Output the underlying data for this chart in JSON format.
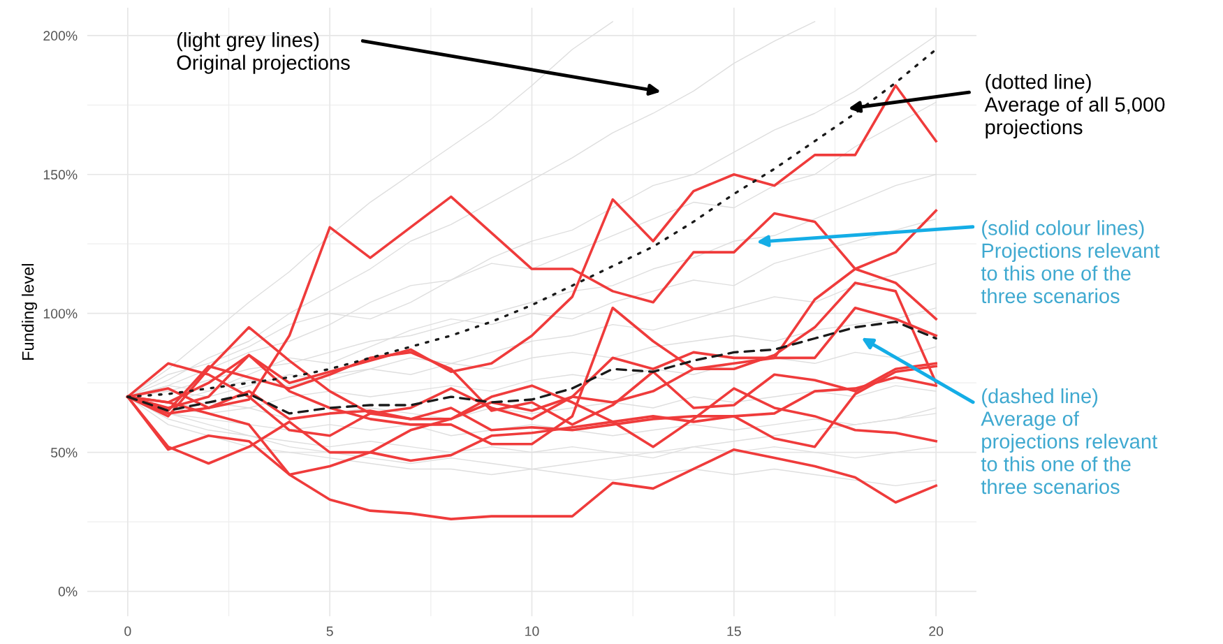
{
  "chart_data": {
    "type": "line",
    "ylabel": "Funding level",
    "x": [
      0,
      1,
      2,
      3,
      4,
      5,
      6,
      7,
      8,
      9,
      10,
      11,
      12,
      13,
      14,
      15,
      16,
      17,
      18,
      19,
      20
    ],
    "xlim": [
      -1,
      21
    ],
    "ylim": [
      -9,
      210
    ],
    "xticks": [
      0,
      5,
      10,
      15,
      20
    ],
    "yticks": [
      {
        "value": 0,
        "label": "0%"
      },
      {
        "value": 50,
        "label": "50%"
      },
      {
        "value": 100,
        "label": "100%"
      },
      {
        "value": 150,
        "label": "150%"
      },
      {
        "value": 200,
        "label": "200%"
      }
    ],
    "grid": true,
    "marker": "none",
    "series": [
      {
        "color": "#dedede",
        "values": [
          70,
          80,
          92,
          104,
          115,
          128,
          140,
          150,
          160,
          170,
          182,
          195,
          205,
          null,
          null,
          null,
          null,
          null,
          null,
          null,
          null
        ]
      },
      {
        "color": "#dedede",
        "values": [
          70,
          76,
          84,
          90,
          100,
          108,
          116,
          126,
          132,
          140,
          148,
          156,
          165,
          172,
          180,
          190,
          198,
          205,
          null,
          null,
          null
        ]
      },
      {
        "color": "#dedede",
        "values": [
          70,
          74,
          80,
          86,
          90,
          96,
          104,
          110,
          112,
          120,
          126,
          130,
          138,
          146,
          150,
          158,
          166,
          172,
          180,
          190,
          200
        ]
      },
      {
        "color": "#dedede",
        "values": [
          70,
          78,
          82,
          88,
          96,
          100,
          98,
          104,
          112,
          118,
          116,
          122,
          128,
          134,
          140,
          138,
          146,
          150,
          160,
          168,
          176
        ]
      },
      {
        "color": "#dedede",
        "values": [
          70,
          72,
          76,
          80,
          82,
          86,
          90,
          92,
          96,
          100,
          104,
          108,
          110,
          116,
          120,
          126,
          128,
          134,
          140,
          146,
          150
        ]
      },
      {
        "color": "#dedede",
        "values": [
          70,
          74,
          72,
          78,
          84,
          82,
          88,
          94,
          98,
          96,
          100,
          98,
          104,
          108,
          112,
          110,
          118,
          122,
          126,
          130,
          134
        ]
      },
      {
        "color": "#dedede",
        "values": [
          70,
          68,
          72,
          76,
          74,
          78,
          80,
          84,
          82,
          86,
          90,
          92,
          96,
          94,
          98,
          102,
          106,
          104,
          110,
          114,
          118
        ]
      },
      {
        "color": "#dedede",
        "values": [
          70,
          72,
          70,
          74,
          78,
          76,
          80,
          78,
          82,
          80,
          84,
          86,
          84,
          88,
          90,
          92,
          90,
          94,
          96,
          98,
          102
        ]
      },
      {
        "color": "#dedede",
        "values": [
          70,
          66,
          68,
          66,
          70,
          72,
          70,
          72,
          74,
          72,
          76,
          78,
          76,
          80,
          78,
          82,
          84,
          82,
          86,
          84,
          88
        ]
      },
      {
        "color": "#dedede",
        "values": [
          70,
          66,
          64,
          66,
          62,
          64,
          66,
          64,
          62,
          66,
          64,
          66,
          68,
          66,
          70,
          68,
          70,
          72,
          70,
          74,
          72
        ]
      },
      {
        "color": "#dedede",
        "values": [
          70,
          64,
          62,
          60,
          58,
          60,
          58,
          60,
          56,
          58,
          60,
          58,
          56,
          58,
          60,
          58,
          60,
          62,
          60,
          62,
          64
        ]
      },
      {
        "color": "#dedede",
        "values": [
          70,
          62,
          58,
          56,
          54,
          52,
          54,
          52,
          50,
          52,
          50,
          52,
          50,
          48,
          52,
          50,
          52,
          50,
          48,
          50,
          52
        ]
      },
      {
        "color": "#dedede",
        "values": [
          70,
          60,
          56,
          52,
          50,
          48,
          46,
          44,
          44,
          42,
          44,
          42,
          40,
          42,
          44,
          42,
          44,
          42,
          40,
          38,
          40
        ]
      },
      {
        "color": "#dedede",
        "values": [
          70,
          64,
          60,
          56,
          52,
          50,
          48,
          46,
          48,
          46,
          44,
          46,
          48,
          50,
          52,
          54,
          56,
          58,
          60,
          62,
          66
        ]
      },
      {
        "color": "#ef3b3b",
        "values": [
          70,
          68,
          75,
          85,
          75,
          79,
          83,
          87,
          79,
          82,
          92,
          106,
          141,
          126,
          144,
          150,
          146,
          157,
          157,
          182,
          162
        ]
      },
      {
        "color": "#ef3b3b",
        "values": [
          70,
          73,
          66,
          69,
          92,
          131,
          120,
          131,
          142,
          129,
          116,
          116,
          108,
          104,
          122,
          122,
          136,
          133,
          116,
          111,
          98
        ]
      },
      {
        "color": "#ef3b3b",
        "values": [
          70,
          64,
          66,
          72,
          62,
          64,
          65,
          62,
          62,
          68,
          65,
          70,
          68,
          72,
          80,
          82,
          84,
          105,
          116,
          122,
          137
        ]
      },
      {
        "color": "#ef3b3b",
        "values": [
          70,
          82,
          78,
          70,
          58,
          56,
          64,
          66,
          73,
          66,
          62,
          70,
          84,
          80,
          86,
          84,
          84,
          84,
          102,
          98,
          92
        ]
      },
      {
        "color": "#ef3b3b",
        "values": [
          70,
          65,
          81,
          77,
          73,
          78,
          84,
          86,
          80,
          65,
          68,
          60,
          67,
          79,
          66,
          67,
          78,
          76,
          72,
          80,
          82
        ]
      },
      {
        "color": "#ef3b3b",
        "values": [
          70,
          66,
          70,
          85,
          72,
          66,
          62,
          60,
          60,
          53,
          53,
          63,
          102,
          90,
          80,
          80,
          85,
          95,
          111,
          108,
          75
        ]
      },
      {
        "color": "#ef3b3b",
        "values": [
          70,
          63,
          80,
          95,
          83,
          72,
          64,
          62,
          66,
          58,
          59,
          58,
          60,
          62,
          63,
          63,
          64,
          72,
          73,
          77,
          74
        ]
      },
      {
        "color": "#ef3b3b",
        "values": [
          70,
          51,
          56,
          54,
          42,
          45,
          50,
          58,
          62,
          70,
          74,
          68,
          61,
          52,
          62,
          73,
          66,
          63,
          58,
          57,
          54
        ]
      },
      {
        "color": "#ef3b3b",
        "values": [
          70,
          52,
          46,
          52,
          61,
          50,
          50,
          47,
          49,
          56,
          57,
          59,
          61,
          63,
          61,
          63,
          55,
          52,
          71,
          79,
          81
        ]
      },
      {
        "color": "#ef3b3b",
        "values": [
          70,
          68,
          64,
          60,
          42,
          33,
          29,
          28,
          26,
          27,
          27,
          27,
          39,
          37,
          44,
          51,
          48,
          45,
          41,
          32,
          38
        ]
      },
      {
        "color": "#1a1a1a",
        "line_style": "dotted",
        "values": [
          70,
          71,
          73,
          75,
          77,
          80,
          84,
          88,
          92,
          97,
          103,
          110,
          117,
          124,
          133,
          143,
          152,
          162,
          172,
          183,
          195
        ]
      },
      {
        "color": "#1a1a1a",
        "line_style": "dashed",
        "values": [
          70,
          65,
          68,
          71,
          64,
          66,
          67,
          67,
          70,
          68,
          69,
          73,
          80,
          79,
          83,
          86,
          87,
          91,
          95,
          97,
          91
        ]
      }
    ],
    "annotations": [
      "(light grey lines)\nOriginal projections",
      "(dotted line)\nAverage of all 5,000\nprojections",
      "(solid colour lines)\nProjections relevant\nto this one of the\nthree scenarios",
      "(dashed line)\nAverage of\nprojections relevant\nto this one of the\nthree scenarios"
    ]
  }
}
